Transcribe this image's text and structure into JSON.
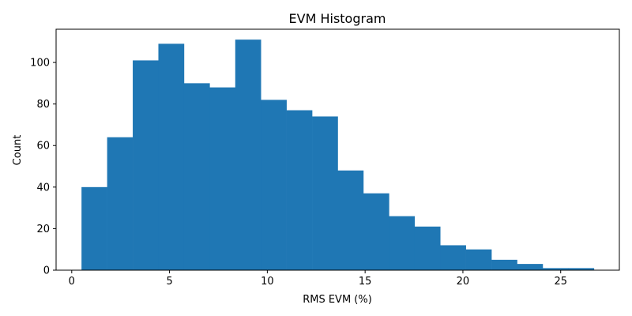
{
  "chart_data": {
    "type": "bar",
    "title": "EVM Histogram",
    "xlabel": "RMS EVM (%)",
    "ylabel": "Count",
    "xlim": [
      -0.8,
      28.0
    ],
    "ylim": [
      0,
      116
    ],
    "grid": false,
    "legend": "none",
    "bar_color": "#1f77b4",
    "xticks": [
      0,
      5,
      10,
      15,
      20,
      25
    ],
    "yticks": [
      0,
      20,
      40,
      60,
      80,
      100
    ],
    "bin_edges": [
      0.5,
      1.81,
      3.12,
      4.43,
      5.74,
      7.05,
      8.36,
      9.67,
      10.98,
      12.29,
      13.6,
      14.91,
      16.22,
      17.53,
      18.84,
      20.15,
      21.46,
      22.77,
      24.08,
      25.39,
      26.7
    ],
    "counts": [
      40,
      64,
      101,
      109,
      90,
      88,
      111,
      82,
      77,
      74,
      48,
      37,
      26,
      21,
      12,
      10,
      5,
      3,
      1,
      1
    ]
  }
}
